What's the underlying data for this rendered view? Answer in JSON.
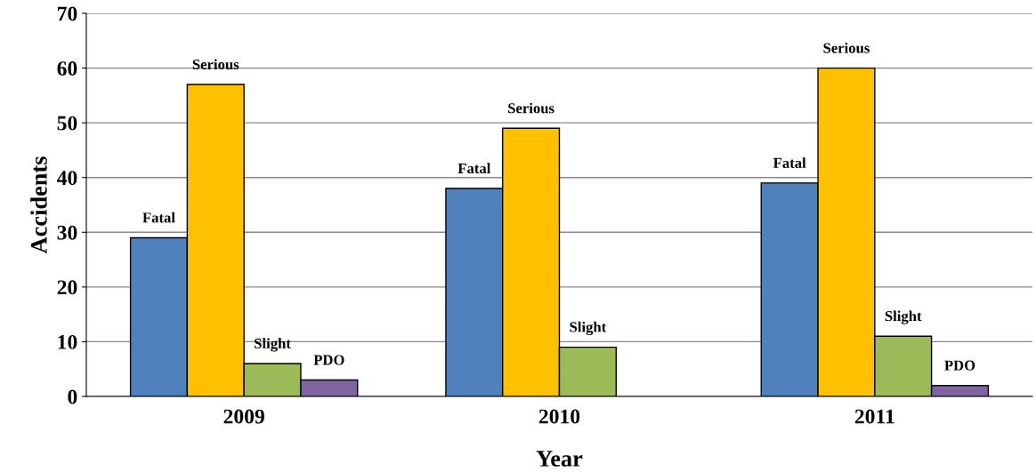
{
  "chart_data": {
    "type": "bar",
    "xlabel": "Year",
    "ylabel": "Accidents",
    "categories": [
      "2009",
      "2010",
      "2011"
    ],
    "series": [
      {
        "name": "Fatal",
        "color": "#4f81bd",
        "values": [
          29,
          38,
          39
        ]
      },
      {
        "name": "Serious",
        "color": "#ffc000",
        "values": [
          57,
          49,
          60
        ]
      },
      {
        "name": "Slight",
        "color": "#9bbb59",
        "values": [
          6,
          9,
          11
        ]
      },
      {
        "name": "PDO",
        "color": "#8064a2",
        "values": [
          3,
          null,
          2
        ]
      }
    ],
    "ylim": [
      0,
      70
    ],
    "yticks": [
      0,
      10,
      20,
      30,
      40,
      50,
      60,
      70
    ],
    "grid": "y",
    "legend": false
  }
}
